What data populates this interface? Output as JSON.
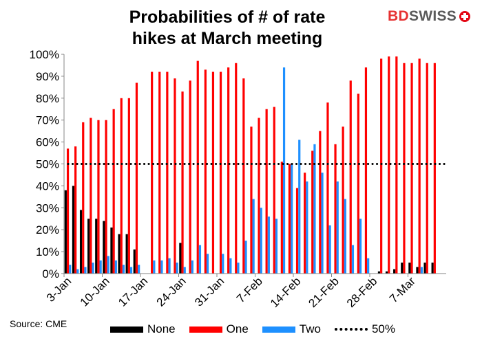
{
  "title": "Probabilities of # of rate\nhikes at March meeting",
  "brand": {
    "part1": "BD",
    "part2": "SWISS"
  },
  "source": "Source: CME",
  "colors": {
    "none": "#000000",
    "one": "#ff0000",
    "two": "#1e90ff"
  },
  "chart_data": {
    "type": "bar",
    "title": "Probabilities of # of rate hikes at March meeting",
    "xlabel": "",
    "ylabel": "",
    "ylim": [
      0,
      100
    ],
    "yticks": [
      "0%",
      "10%",
      "20%",
      "30%",
      "40%",
      "50%",
      "60%",
      "70%",
      "80%",
      "90%",
      "100%"
    ],
    "xticks": [
      "3-Jan",
      "10-Jan",
      "17-Jan",
      "24-Jan",
      "31-Jan",
      "7-Feb",
      "14-Feb",
      "21-Feb",
      "28-Feb",
      "7-Mar"
    ],
    "reference_line": {
      "name": "50%",
      "value": 50
    },
    "legend_position": "bottom",
    "grid": false,
    "categories": [
      "3-Jan",
      "4-Jan",
      "5-Jan",
      "6-Jan",
      "7-Jan",
      "10-Jan",
      "11-Jan",
      "12-Jan",
      "13-Jan",
      "14-Jan",
      "17-Jan",
      "18-Jan",
      "19-Jan",
      "20-Jan",
      "21-Jan",
      "24-Jan",
      "25-Jan",
      "26-Jan",
      "27-Jan",
      "28-Jan",
      "31-Jan",
      "1-Feb",
      "2-Feb",
      "3-Feb",
      "4-Feb",
      "7-Feb",
      "8-Feb",
      "9-Feb",
      "10-Feb",
      "11-Feb",
      "14-Feb",
      "15-Feb",
      "16-Feb",
      "17-Feb",
      "18-Feb",
      "21-Feb",
      "22-Feb",
      "23-Feb",
      "24-Feb",
      "25-Feb",
      "28-Feb",
      "1-Mar",
      "2-Mar",
      "3-Mar",
      "4-Mar",
      "7-Mar",
      "8-Mar",
      "9-Mar",
      "10-Mar",
      "11-Mar"
    ],
    "series": [
      {
        "name": "None",
        "values": [
          38,
          40,
          29,
          25,
          25,
          24,
          21,
          18,
          18,
          11,
          0,
          0,
          0,
          0,
          0,
          14,
          0,
          0,
          0,
          0,
          0,
          0,
          0,
          0,
          0,
          0,
          0,
          0,
          0,
          0,
          0,
          0,
          0,
          0,
          0,
          0,
          0,
          0,
          0,
          0,
          0,
          1,
          1,
          2,
          5,
          5,
          3,
          5,
          5,
          0
        ]
      },
      {
        "name": "One",
        "values": [
          57,
          58,
          69,
          71,
          70,
          70,
          75,
          80,
          80,
          87,
          0,
          92,
          92,
          92,
          89,
          83,
          88,
          97,
          93,
          92,
          92,
          94,
          96,
          89,
          67,
          71,
          75,
          76,
          51,
          50,
          39,
          46,
          56,
          65,
          78,
          59,
          67,
          88,
          82,
          94,
          0,
          98,
          99,
          99,
          96,
          96,
          98,
          96,
          96,
          0
        ]
      },
      {
        "name": "Two",
        "values": [
          4,
          2,
          3,
          5,
          6,
          8,
          6,
          4,
          3,
          4,
          0,
          6,
          6,
          7,
          5,
          3,
          6,
          13,
          9,
          0,
          9,
          7,
          5,
          15,
          34,
          30,
          26,
          25,
          94,
          50,
          61,
          42,
          59,
          46,
          22,
          42,
          34,
          13,
          25,
          7,
          0,
          0,
          0,
          0,
          0,
          0,
          3,
          0,
          0,
          0
        ]
      }
    ]
  }
}
